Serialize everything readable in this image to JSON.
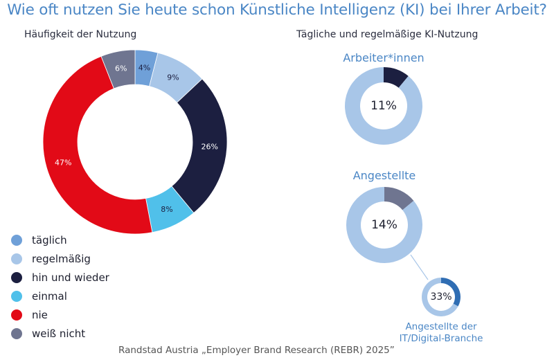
{
  "title": "Wie oft nutzen Sie heute schon Künstliche Intelligenz (KI) bei Ihrer Arbeit?",
  "source": "Randstad Austria „Employer Brand Research (REBR) 2025”",
  "chart_data": [
    {
      "type": "pie",
      "variant": "donut",
      "title": "Häufigkeit der Nutzung",
      "categories": [
        "täglich",
        "regelmäßig",
        "hin und wieder",
        "einmal",
        "nie",
        "weiß nicht"
      ],
      "values": [
        4,
        9,
        26,
        8,
        47,
        6
      ],
      "unit": "%",
      "labels": [
        "4%",
        "9%",
        "26%",
        "8%",
        "47%",
        "6%"
      ],
      "colors": [
        "#6fa0d8",
        "#a8c6e8",
        "#1c1f40",
        "#50c0ea",
        "#e20a17",
        "#6f7590"
      ],
      "label_colors": [
        "#1c1f40",
        "#1c1f40",
        "#ffffff",
        "#1c1f40",
        "#ffffff",
        "#ffffff"
      ],
      "legend_position": "bottom-left"
    },
    {
      "type": "pie",
      "variant": "donut",
      "group_title": "Tägliche und regelmäßige KI-Nutzung",
      "title": "Arbeiter*innen",
      "value": 11,
      "center_label": "11%",
      "highlight_color": "#1c1f40",
      "rest_color": "#a8c6e8"
    },
    {
      "type": "pie",
      "variant": "donut",
      "title": "Angestellte",
      "value": 14,
      "center_label": "14%",
      "highlight_color": "#6f7590",
      "rest_color": "#a8c6e8"
    },
    {
      "type": "pie",
      "variant": "donut",
      "title": "Angestellte der IT/Digital-Branche",
      "title_lines": [
        "Angestellte der",
        "IT/Digital-Branche"
      ],
      "value": 33,
      "center_label": "33%",
      "highlight_color": "#2f6db3",
      "rest_color": "#a8c6e8"
    }
  ]
}
